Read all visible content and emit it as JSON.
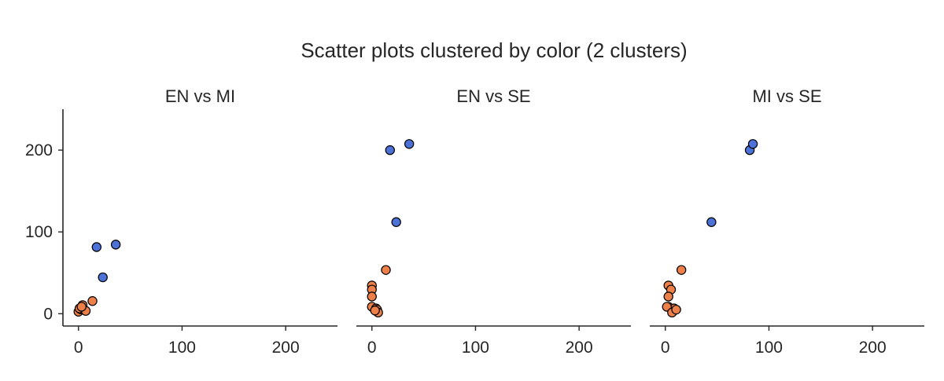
{
  "figure": {
    "title": "Scatter plots clustered by color (2 clusters)"
  },
  "colors": {
    "cluster_0": "#4c72d8",
    "cluster_1": "#ed8048",
    "marker_edge": "#000000",
    "axis": "#262626"
  },
  "chart_data": [
    {
      "type": "scatter",
      "title": "EN vs MI",
      "xlim": [
        -15,
        250
      ],
      "ylim": [
        -15,
        250
      ],
      "xticks": [
        0,
        100,
        200
      ],
      "yticks": [
        0,
        100,
        200
      ],
      "grid": false,
      "series": [
        {
          "cluster": 0,
          "x": [
            17.5,
            36,
            23.5
          ],
          "y": [
            81.5,
            84.5,
            44.5
          ]
        },
        {
          "cluster": 1,
          "x": [
            13.5,
            4,
            0,
            2,
            1,
            7,
            3
          ],
          "y": [
            15.5,
            10.5,
            2.5,
            5.5,
            6.5,
            3.5,
            8.5
          ]
        }
      ]
    },
    {
      "type": "scatter",
      "title": "EN vs SE",
      "xlim": [
        -15,
        250
      ],
      "ylim": [
        -15,
        250
      ],
      "xticks": [
        0,
        100,
        200
      ],
      "yticks": [],
      "grid": false,
      "series": [
        {
          "cluster": 0,
          "x": [
            17.5,
            36,
            23.5
          ],
          "y": [
            200,
            207.5,
            112
          ]
        },
        {
          "cluster": 1,
          "x": [
            13.5,
            0,
            0,
            0,
            0,
            4,
            5,
            6,
            3
          ],
          "y": [
            53.5,
            34.5,
            29.5,
            21,
            8.5,
            6.5,
            5,
            1.5,
            4
          ]
        }
      ]
    },
    {
      "type": "scatter",
      "title": "MI vs SE",
      "xlim": [
        -15,
        250
      ],
      "ylim": [
        -15,
        250
      ],
      "xticks": [
        0,
        100,
        200
      ],
      "yticks": [],
      "grid": false,
      "series": [
        {
          "cluster": 0,
          "x": [
            81.5,
            84.5,
            44.5
          ],
          "y": [
            200,
            207.5,
            112
          ]
        },
        {
          "cluster": 1,
          "x": [
            15.5,
            3,
            5.5,
            3,
            3,
            8.5,
            1.5,
            6.5,
            10.5
          ],
          "y": [
            53.5,
            34.5,
            29.5,
            21,
            8.5,
            6.5,
            8.5,
            1.5,
            5
          ]
        }
      ]
    }
  ]
}
